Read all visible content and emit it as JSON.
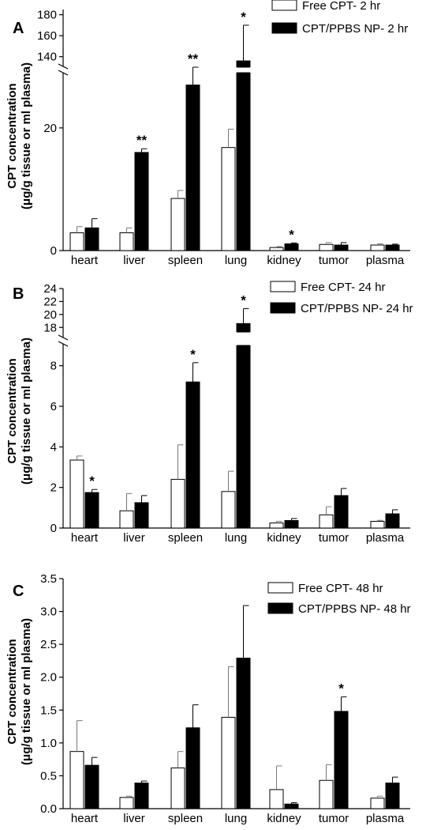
{
  "chart_data": [
    {
      "type": "bar",
      "panel_label": "A",
      "categories": [
        "heart",
        "liver",
        "spleen",
        "lung",
        "kidney",
        "tumor",
        "plasma"
      ],
      "series": [
        {
          "name": "Free CPT- 2 hr",
          "color": "#ffffff",
          "values": [
            2.9,
            2.9,
            8.5,
            16.8,
            0.5,
            1.0,
            0.9
          ],
          "errors": [
            1.0,
            0.8,
            1.3,
            3.0,
            0.15,
            0.3,
            0.2
          ]
        },
        {
          "name": "CPT/PPBS NP- 2 hr",
          "color": "#000000",
          "values": [
            3.7,
            16.0,
            27.0,
            136.0,
            1.1,
            0.9,
            0.9
          ],
          "errors": [
            1.5,
            0.6,
            2.2,
            34.0,
            0.15,
            0.4,
            0.15
          ]
        }
      ],
      "significance": [
        "",
        "**",
        "**",
        "*",
        "*",
        "",
        ""
      ],
      "ylabel": "CPT concentration (μg/g tissue or ml plasma)",
      "yticks_lower": [
        "0",
        "20"
      ],
      "yticks_upper": [
        "140",
        "160",
        "180"
      ],
      "axis_break": true,
      "legend_position": "top-right"
    },
    {
      "type": "bar",
      "panel_label": "B",
      "categories": [
        "heart",
        "liver",
        "spleen",
        "lung",
        "kidney",
        "tumor",
        "plasma"
      ],
      "series": [
        {
          "name": "Free CPT- 24 hr",
          "color": "#ffffff",
          "values": [
            3.35,
            0.85,
            2.4,
            1.8,
            0.25,
            0.65,
            0.33
          ],
          "errors": [
            0.2,
            0.85,
            1.7,
            1.0,
            0.08,
            0.4,
            0.05
          ]
        },
        {
          "name": "CPT/PPBS NP- 24 hr",
          "color": "#000000",
          "values": [
            1.75,
            1.25,
            7.2,
            18.6,
            0.37,
            1.6,
            0.7
          ],
          "errors": [
            0.15,
            0.35,
            0.95,
            2.3,
            0.1,
            0.35,
            0.2
          ]
        }
      ],
      "significance": [
        "*",
        "",
        "*",
        "*",
        "",
        "",
        ""
      ],
      "ylabel": "CPT concentration (μg/g tissue or ml plasma)",
      "yticks_lower": [
        "0",
        "2",
        "4",
        "6",
        "8"
      ],
      "yticks_upper": [
        "18",
        "20",
        "22",
        "24"
      ],
      "axis_break": true,
      "legend_position": "top-right"
    },
    {
      "type": "bar",
      "panel_label": "C",
      "categories": [
        "heart",
        "liver",
        "spleen",
        "lung",
        "kidney",
        "tumor",
        "plasma"
      ],
      "series": [
        {
          "name": "Free CPT- 48 hr",
          "color": "#ffffff",
          "values": [
            0.87,
            0.17,
            0.62,
            1.39,
            0.29,
            0.43,
            0.16
          ],
          "errors": [
            0.47,
            0.02,
            0.25,
            0.77,
            0.36,
            0.24,
            0.03
          ]
        },
        {
          "name": "CPT/PPBS NP- 48 hr",
          "color": "#000000",
          "values": [
            0.66,
            0.39,
            1.23,
            2.29,
            0.07,
            1.48,
            0.39
          ],
          "errors": [
            0.12,
            0.03,
            0.35,
            0.8,
            0.02,
            0.22,
            0.09
          ]
        }
      ],
      "significance": [
        "",
        "",
        "",
        "",
        "",
        "*",
        ""
      ],
      "ylabel": "CPT concentration (μg/g tissue or ml plasma)",
      "yticks": [
        "0.0",
        "0.5",
        "1.0",
        "1.5",
        "2.0",
        "2.5",
        "3.0",
        "3.5"
      ],
      "ylim": [
        0,
        3.5
      ],
      "axis_break": false,
      "legend_position": "top-right"
    }
  ]
}
